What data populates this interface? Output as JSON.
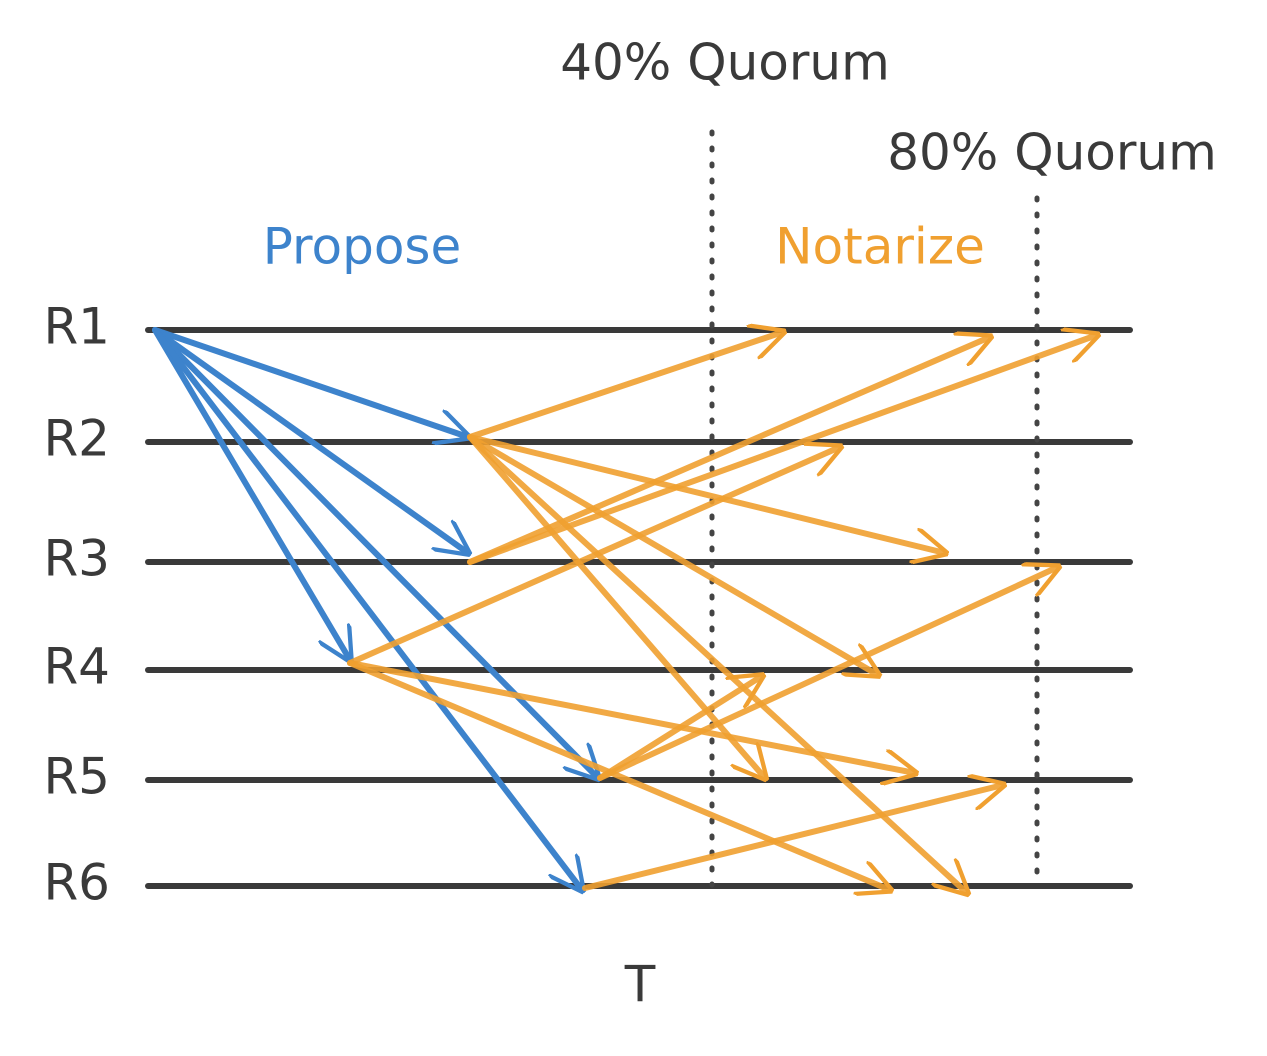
{
  "quorums": [
    "40% Quorum",
    "80% Quorum"
  ],
  "phases": [
    "Propose",
    "Notarize"
  ],
  "rows": [
    "R1",
    "R2",
    "R3",
    "R4",
    "R5",
    "R6"
  ],
  "axis_label": "T"
}
